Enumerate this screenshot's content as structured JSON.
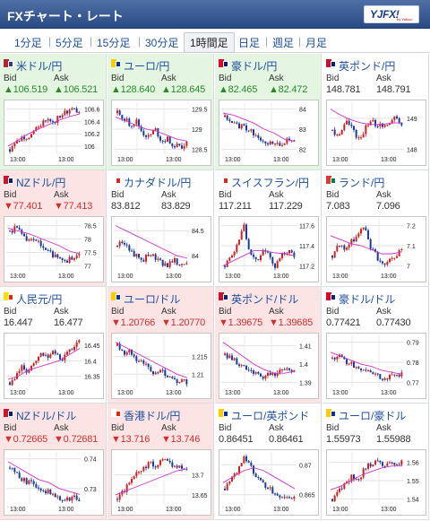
{
  "header": {
    "title": "FXチャート・レート",
    "logo_text": "YJFX!",
    "logo_sub": "by Yahoo!"
  },
  "tabs": [
    {
      "label": "1分足",
      "active": false
    },
    {
      "label": "5分足",
      "active": false
    },
    {
      "label": "15分足",
      "active": false
    },
    {
      "label": "30分足",
      "active": false
    },
    {
      "label": "1時間足",
      "active": true
    },
    {
      "label": "日足",
      "active": false
    },
    {
      "label": "週足",
      "active": false
    },
    {
      "label": "月足",
      "active": false
    }
  ],
  "labels": {
    "bid": "Bid",
    "ask": "Ask"
  },
  "colors": {
    "up_bg": "#e4f5e1",
    "down_bg": "#fce4e4",
    "link": "#1f4f9e",
    "candle_up": "#d02020",
    "candle_down": "#1c3c9a",
    "ma": "#cc33cc"
  },
  "pairs": [
    {
      "name": "米ドル/円",
      "flag": "us-flag",
      "state": "up",
      "bid": "▲106.519",
      "ask": "▲106.521"
    },
    {
      "name": "ユーロ/円",
      "flag": "eu-flag",
      "state": "up",
      "bid": "▲128.640",
      "ask": "▲128.645"
    },
    {
      "name": "豪ドル/円",
      "flag": "au-flag",
      "state": "up",
      "bid": "▲82.465",
      "ask": "▲82.472"
    },
    {
      "name": "英ポンド/円",
      "flag": "gb-flag",
      "state": "flat",
      "bid": "148.781",
      "ask": "148.791"
    },
    {
      "name": "NZドル/円",
      "flag": "nz-flag",
      "state": "down",
      "bid": "▼77.401",
      "ask": "▼77.413"
    },
    {
      "name": "カナダドル/円",
      "flag": "ca-flag",
      "state": "flat",
      "bid": "83.812",
      "ask": "83.829"
    },
    {
      "name": "スイスフラン/円",
      "flag": "ch-flag",
      "state": "flat",
      "bid": "117.211",
      "ask": "117.229"
    },
    {
      "name": "ランド/円",
      "flag": "za-flag",
      "state": "flat",
      "bid": "7.083",
      "ask": "7.096"
    },
    {
      "name": "人民元/円",
      "flag": "cn-flag",
      "state": "flat",
      "bid": "16.447",
      "ask": "16.477"
    },
    {
      "name": "ユーロ/ドル",
      "flag": "eu-flag",
      "state": "down",
      "bid": "▼1.20766",
      "ask": "▼1.20770"
    },
    {
      "name": "英ポンド/ドル",
      "flag": "gb-flag",
      "state": "down",
      "bid": "▼1.39675",
      "ask": "▼1.39685"
    },
    {
      "name": "豪ドル/ドル",
      "flag": "au-flag",
      "state": "flat",
      "bid": "0.77421",
      "ask": "0.77430"
    },
    {
      "name": "NZドル/ドル",
      "flag": "nz-flag",
      "state": "down",
      "bid": "▼0.72665",
      "ask": "▼0.72681"
    },
    {
      "name": "香港ドル/円",
      "flag": "hk-flag",
      "state": "down",
      "bid": "▼13.716",
      "ask": "▼13.746"
    },
    {
      "name": "ユーロ/英ポンド",
      "flag": "eu-flag",
      "state": "flat",
      "bid": "0.86451",
      "ask": "0.86461"
    },
    {
      "name": "ユーロ/豪ドル",
      "flag": "eu-flag",
      "state": "flat",
      "bid": "1.55973",
      "ask": "1.55988"
    }
  ],
  "chart_data": [
    {
      "type": "line",
      "title": "米ドル/円",
      "x": [
        "13:00",
        "13:00"
      ],
      "yticks": [
        "106.6",
        "106.4",
        "106.2",
        "106"
      ],
      "trend": [
        105.95,
        106.05,
        106.15,
        106.1,
        106.3,
        106.35,
        106.45,
        106.4,
        106.5,
        106.55,
        106.6,
        106.55
      ],
      "ma": [
        106.0,
        106.1,
        106.2,
        106.28,
        106.35,
        106.42,
        106.48,
        106.52
      ]
    },
    {
      "type": "line",
      "title": "ユーロ/円",
      "x": [
        "13:00",
        "13:00"
      ],
      "yticks": [
        "129.5",
        "129",
        "128.5"
      ],
      "trend": [
        129.4,
        129.3,
        129.1,
        129.2,
        128.9,
        128.8,
        129.0,
        128.7,
        128.75,
        128.6,
        128.55,
        128.65
      ],
      "ma": [
        129.3,
        129.2,
        129.1,
        129.0,
        128.95,
        128.85,
        128.75,
        128.7
      ]
    },
    {
      "type": "line",
      "title": "豪ドル/円",
      "x": [
        "13:00",
        "13:00"
      ],
      "yticks": [
        "84",
        "83",
        "82"
      ],
      "trend": [
        83.6,
        83.4,
        83.2,
        83.1,
        82.9,
        82.7,
        82.5,
        82.3,
        82.2,
        82.3,
        82.45,
        82.5
      ],
      "ma": [
        83.8,
        83.7,
        83.5,
        83.3,
        83.0,
        82.8,
        82.5,
        82.4
      ]
    },
    {
      "type": "line",
      "title": "英ポンド/円",
      "x": [
        "13:00",
        "13:00"
      ],
      "yticks": [
        "149",
        "148"
      ],
      "trend": [
        148.6,
        148.4,
        148.9,
        148.7,
        148.3,
        148.6,
        148.9,
        148.8,
        148.7,
        148.9,
        149.0,
        148.8
      ],
      "ma": [
        149.3,
        149.1,
        148.95,
        148.85,
        148.8,
        148.8,
        148.85,
        148.85
      ]
    },
    {
      "type": "line",
      "title": "NZドル/円",
      "x": [
        "13:00",
        "13:00"
      ],
      "yticks": [
        "78.5",
        "78",
        "77.5",
        "77"
      ],
      "trend": [
        78.3,
        78.4,
        78.1,
        77.9,
        78.0,
        77.7,
        77.5,
        77.4,
        77.3,
        77.2,
        77.35,
        77.4
      ],
      "ma": [
        78.4,
        78.3,
        78.2,
        78.05,
        77.9,
        77.75,
        77.55,
        77.45
      ]
    },
    {
      "type": "line",
      "title": "カナダドル/円",
      "x": [
        "13:00",
        "13:00"
      ],
      "yticks": [
        "84.5",
        "84"
      ],
      "trend": [
        84.2,
        84.3,
        84.1,
        84.0,
        83.9,
        84.05,
        83.95,
        83.85,
        83.8,
        83.9,
        83.85,
        83.8
      ],
      "ma": [
        84.6,
        84.5,
        84.4,
        84.3,
        84.2,
        84.1,
        84.0,
        83.95
      ]
    },
    {
      "type": "line",
      "title": "スイスフラン/円",
      "x": [
        "13:00",
        "13:00"
      ],
      "yticks": [
        "117.6",
        "117.4",
        "117.2"
      ],
      "trend": [
        117.2,
        117.3,
        117.4,
        117.6,
        117.3,
        117.25,
        117.35,
        117.3,
        117.2,
        117.3,
        117.35,
        117.3
      ],
      "ma": [
        117.2,
        117.25,
        117.3,
        117.35,
        117.35,
        117.33,
        117.32,
        117.3
      ]
    },
    {
      "type": "line",
      "title": "ランド/円",
      "x": [
        "13:00",
        "13:00"
      ],
      "yticks": [
        "7.2",
        "7.1",
        "7"
      ],
      "trend": [
        7.05,
        7.1,
        7.08,
        7.12,
        7.15,
        7.2,
        7.1,
        7.05,
        7.0,
        7.02,
        7.05,
        7.08
      ],
      "ma": [
        7.15,
        7.13,
        7.11,
        7.1,
        7.08,
        7.06,
        7.06,
        7.07
      ]
    },
    {
      "type": "line",
      "title": "人民元/円",
      "x": [
        "13:00",
        "13:00"
      ],
      "yticks": [
        "16.45",
        "16.4",
        "16.35"
      ],
      "trend": [
        16.33,
        16.35,
        16.38,
        16.36,
        16.4,
        16.42,
        16.41,
        16.43,
        16.4,
        16.42,
        16.44,
        16.46
      ],
      "ma": [
        16.34,
        16.35,
        16.37,
        16.38,
        16.39,
        16.4,
        16.42,
        16.44
      ]
    },
    {
      "type": "line",
      "title": "ユーロ/ドル",
      "x": [
        "13:00",
        "13:00"
      ],
      "yticks": [
        "1.215",
        "1.21"
      ],
      "trend": [
        1.218,
        1.216,
        1.217,
        1.213,
        1.214,
        1.212,
        1.21,
        1.211,
        1.209,
        1.208,
        1.208,
        1.2077
      ],
      "ma": [
        1.219,
        1.2175,
        1.216,
        1.2145,
        1.213,
        1.2115,
        1.21,
        1.209
      ]
    },
    {
      "type": "line",
      "title": "英ポンド/ドル",
      "x": [
        "13:00",
        "13:00"
      ],
      "yticks": [
        "1.41",
        "1.4",
        "1.39"
      ],
      "trend": [
        1.405,
        1.403,
        1.401,
        1.398,
        1.396,
        1.394,
        1.393,
        1.395,
        1.394,
        1.396,
        1.398,
        1.3968
      ],
      "ma": [
        1.412,
        1.408,
        1.404,
        1.4,
        1.397,
        1.395,
        1.395,
        1.396
      ]
    },
    {
      "type": "line",
      "title": "豪ドル/ドル",
      "x": [
        "13:00",
        "13:00"
      ],
      "yticks": [
        "0.79",
        "0.78",
        "0.77"
      ],
      "trend": [
        0.782,
        0.784,
        0.781,
        0.779,
        0.777,
        0.776,
        0.775,
        0.774,
        0.772,
        0.773,
        0.7735,
        0.7742
      ],
      "ma": [
        0.785,
        0.783,
        0.781,
        0.779,
        0.778,
        0.776,
        0.775,
        0.774
      ]
    },
    {
      "type": "line",
      "title": "NZドル/ドル",
      "x": [
        "13:00",
        "13:00"
      ],
      "yticks": [
        "0.74",
        "0.73"
      ],
      "trend": [
        0.737,
        0.735,
        0.733,
        0.732,
        0.731,
        0.73,
        0.729,
        0.728,
        0.727,
        0.7265,
        0.727,
        0.7266
      ],
      "ma": [
        0.739,
        0.737,
        0.735,
        0.733,
        0.732,
        0.73,
        0.729,
        0.728
      ]
    },
    {
      "type": "line",
      "title": "香港ドル/円",
      "x": [
        "13:00",
        "13:00"
      ],
      "yticks": [
        "13.7",
        "13.65"
      ],
      "trend": [
        13.64,
        13.66,
        13.68,
        13.7,
        13.71,
        13.73,
        13.72,
        13.74,
        13.73,
        13.72,
        13.72,
        13.716
      ],
      "ma": [
        13.65,
        13.66,
        13.67,
        13.68,
        13.69,
        13.7,
        13.71,
        13.715
      ]
    },
    {
      "type": "line",
      "title": "ユーロ/英ポンド",
      "x": [
        "13:00",
        "13:00"
      ],
      "yticks": [
        "0.87",
        "0.865"
      ],
      "trend": [
        0.866,
        0.868,
        0.869,
        0.871,
        0.87,
        0.868,
        0.867,
        0.866,
        0.865,
        0.8645,
        0.8643,
        0.8645
      ],
      "ma": [
        0.867,
        0.868,
        0.869,
        0.8695,
        0.869,
        0.868,
        0.867,
        0.866
      ]
    },
    {
      "type": "line",
      "title": "ユーロ/豪ドル",
      "x": [
        "13:00",
        "13:00"
      ],
      "yticks": [
        "1.56",
        "1.55",
        "1.54"
      ],
      "trend": [
        1.54,
        1.545,
        1.548,
        1.552,
        1.55,
        1.556,
        1.559,
        1.562,
        1.558,
        1.56,
        1.557,
        1.5597
      ],
      "ma": [
        1.545,
        1.547,
        1.55,
        1.553,
        1.555,
        1.557,
        1.558,
        1.558
      ]
    }
  ]
}
